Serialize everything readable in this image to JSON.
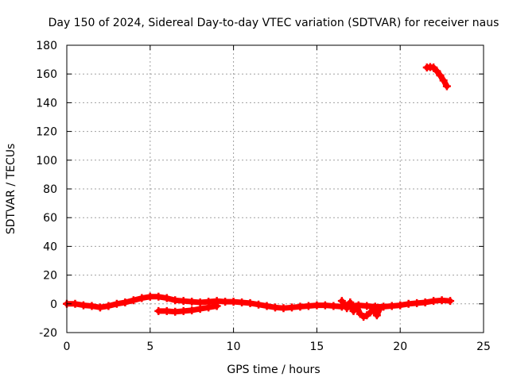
{
  "chart_data": {
    "type": "scatter",
    "title": "Day 150 of 2024, Sidereal Day-to-day VTEC variation (SDTVAR) for receiver naus",
    "xlabel": "GPS time / hours",
    "ylabel": "SDTVAR / TECUs",
    "xlim": [
      0,
      25
    ],
    "ylim": [
      -20,
      180
    ],
    "xticks": [
      0,
      5,
      10,
      15,
      20,
      25
    ],
    "yticks": [
      -20,
      0,
      20,
      40,
      60,
      80,
      100,
      120,
      140,
      160,
      180
    ],
    "grid": true,
    "series_color": "#ff0000",
    "series": [
      {
        "name": "sdtvar-main",
        "x": [
          0,
          0.5,
          1,
          1.5,
          2,
          2.5,
          3,
          3.5,
          4,
          4.5,
          5,
          5.5,
          6,
          6.5,
          7,
          7.5,
          8,
          8.5,
          9,
          9.5,
          10,
          10.5,
          11,
          11.5,
          12,
          12.5,
          13,
          13.5,
          14,
          14.5,
          15,
          15.5,
          16,
          16.5,
          17,
          17.5,
          18,
          18.5,
          19,
          19.5,
          20,
          20.5,
          21,
          21.5,
          22,
          22.5,
          23
        ],
        "y": [
          0,
          0,
          -1,
          -1.5,
          -2.5,
          -1.5,
          0,
          1,
          2.5,
          4,
          5,
          5,
          4,
          2.5,
          2,
          1.5,
          1,
          1.5,
          2,
          1.5,
          1.5,
          1,
          0.5,
          -0.5,
          -1.5,
          -2.5,
          -3,
          -2.5,
          -2,
          -1.5,
          -1,
          -1,
          -1.5,
          -2,
          -1.5,
          -1,
          -1.5,
          -2,
          -2,
          -1.5,
          -1,
          0,
          0.5,
          1,
          2,
          2.5,
          2
        ]
      },
      {
        "name": "sdtvar-lower-arc",
        "x": [
          5.5,
          6,
          6.5,
          7,
          7.5,
          8,
          8.5,
          9
        ],
        "y": [
          -5,
          -5,
          -5.5,
          -5,
          -4.5,
          -3.5,
          -2.5,
          -1.5
        ]
      },
      {
        "name": "sdtvar-scatter-cluster",
        "x": [
          16.5,
          16.8,
          17,
          17.2,
          17.4,
          17.6,
          17.8,
          18,
          18.2,
          18.4,
          18.6,
          18.8
        ],
        "y": [
          2,
          -3,
          1,
          -5,
          -2,
          -7,
          -9,
          -8,
          -6,
          -4,
          -8,
          -3
        ]
      },
      {
        "name": "sdtvar-high-arc",
        "x": [
          21.6,
          21.8,
          22,
          22.2,
          22.4,
          22.6,
          22.8
        ],
        "y": [
          164.5,
          164.8,
          164.5,
          162,
          159,
          155.5,
          151.5
        ]
      }
    ]
  }
}
